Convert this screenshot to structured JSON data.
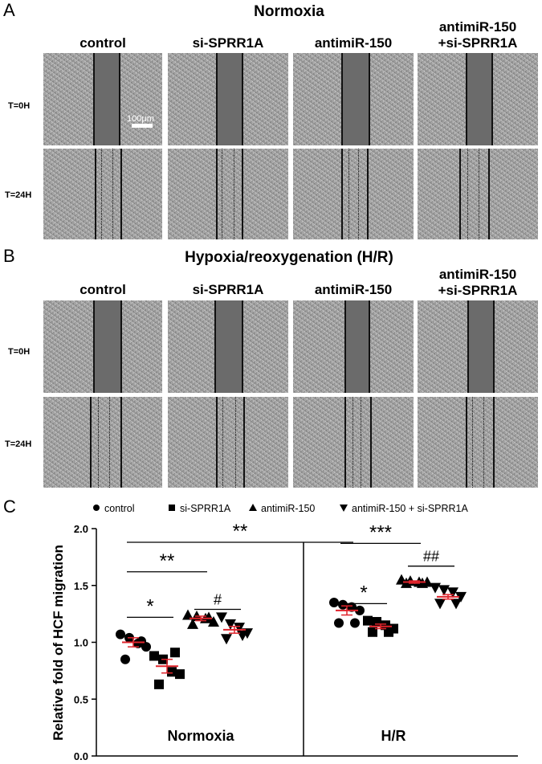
{
  "panels": {
    "a": {
      "letter": "A",
      "title": "Normoxia"
    },
    "b": {
      "letter": "B",
      "title": "Hypoxia/reoxygenation (H/R)"
    },
    "c": {
      "letter": "C"
    }
  },
  "columns": [
    {
      "line1": "control",
      "line2": ""
    },
    {
      "line1": "si-SPRR1A",
      "line2": ""
    },
    {
      "line1": "antimiR-150",
      "line2": ""
    },
    {
      "line1": "antimiR-150",
      "line2": "+si-SPRR1A"
    }
  ],
  "rows": {
    "t0": "T=0H",
    "t24": "T=24H"
  },
  "scale_bar": "100μm",
  "chart_data": {
    "type": "scatter",
    "ylabel": "Relative fold of HCF migration",
    "ylim": [
      0.0,
      2.0
    ],
    "yticks": [
      "0.0",
      "0.5",
      "1.0",
      "1.5",
      "2.0"
    ],
    "groups": [
      "Normoxia",
      "H/R"
    ],
    "legend": [
      {
        "marker": "circle",
        "label": "control"
      },
      {
        "marker": "square",
        "label": "si-SPRR1A"
      },
      {
        "marker": "triangle-up",
        "label": "antimiR-150"
      },
      {
        "marker": "triangle-down",
        "label": "antimiR-150 + si-SPRR1A"
      }
    ],
    "series": [
      {
        "name": "control",
        "group": "Normoxia",
        "mean": 1.0,
        "sem": 0.04,
        "points": [
          1.07,
          1.04,
          0.99,
          0.96,
          0.85,
          1.01
        ]
      },
      {
        "name": "si-SPRR1A",
        "group": "Normoxia",
        "mean": 0.79,
        "sem": 0.06,
        "points": [
          0.88,
          0.85,
          0.74,
          0.72,
          0.63,
          0.91
        ]
      },
      {
        "name": "antimiR-150",
        "group": "Normoxia",
        "mean": 1.21,
        "sem": 0.02,
        "points": [
          1.24,
          1.23,
          1.21,
          1.18,
          1.16,
          1.22
        ]
      },
      {
        "name": "antimiR-150 + si-SPRR1A",
        "group": "Normoxia",
        "mean": 1.11,
        "sem": 0.03,
        "points": [
          1.22,
          1.16,
          1.13,
          1.08,
          1.03,
          1.06
        ]
      },
      {
        "name": "control",
        "group": "H/R",
        "mean": 1.28,
        "sem": 0.04,
        "points": [
          1.35,
          1.33,
          1.31,
          1.28,
          1.17,
          1.17
        ]
      },
      {
        "name": "si-SPRR1A",
        "group": "H/R",
        "mean": 1.14,
        "sem": 0.02,
        "points": [
          1.19,
          1.18,
          1.15,
          1.12,
          1.09,
          1.09
        ]
      },
      {
        "name": "antimiR-150",
        "group": "H/R",
        "mean": 1.53,
        "sem": 0.01,
        "points": [
          1.55,
          1.54,
          1.53,
          1.53,
          1.52,
          1.52
        ]
      },
      {
        "name": "antimiR-150 + si-SPRR1A",
        "group": "H/R",
        "mean": 1.4,
        "sem": 0.02,
        "points": [
          1.48,
          1.46,
          1.44,
          1.4,
          1.34,
          1.34
        ]
      }
    ],
    "annotations": [
      {
        "text": "**",
        "from": 0,
        "to": 4,
        "y": 1.88
      },
      {
        "text": "**",
        "from": 0,
        "to": 2,
        "y": 1.62
      },
      {
        "text": "*",
        "from": 0,
        "to": 1,
        "y": 1.22
      },
      {
        "text": "#",
        "from": 2,
        "to": 3,
        "y": 1.29
      },
      {
        "text": "***",
        "from": 4,
        "to": 6,
        "y": 1.87
      },
      {
        "text": "*",
        "from": 4,
        "to": 5,
        "y": 1.34
      },
      {
        "text": "##",
        "from": 6,
        "to": 7,
        "y": 1.67
      }
    ],
    "colors": {
      "mean_bar": "#e0232b",
      "marker": "#000000"
    }
  }
}
